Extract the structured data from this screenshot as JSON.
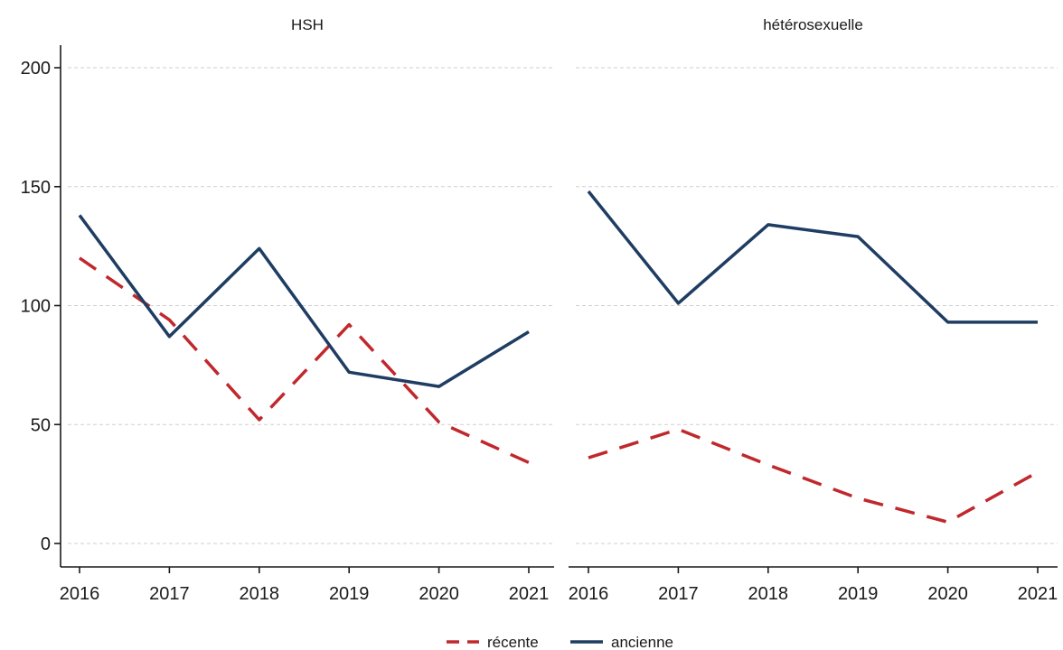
{
  "chart_data": {
    "type": "line",
    "x": [
      2016,
      2017,
      2018,
      2019,
      2020,
      2021
    ],
    "ylim": [
      0,
      200
    ],
    "yticks": [
      0,
      50,
      100,
      150,
      200
    ],
    "grid": true,
    "legend_position": "bottom",
    "series_styles": [
      {
        "name": "récente",
        "color": "#c0282d",
        "dash": "dashed"
      },
      {
        "name": "ancienne",
        "color": "#1f3d62",
        "dash": "solid"
      }
    ],
    "panels": [
      {
        "title": "HSH",
        "series": [
          {
            "name": "récente",
            "values": [
              120,
              94,
              52,
              92,
              51,
              34
            ]
          },
          {
            "name": "ancienne",
            "values": [
              138,
              87,
              124,
              72,
              66,
              89
            ]
          }
        ]
      },
      {
        "title": "hétérosexuelle",
        "series": [
          {
            "name": "récente",
            "values": [
              36,
              48,
              33,
              19,
              9,
              30
            ]
          },
          {
            "name": "ancienne",
            "values": [
              148,
              101,
              134,
              129,
              93,
              93
            ]
          }
        ]
      }
    ]
  }
}
